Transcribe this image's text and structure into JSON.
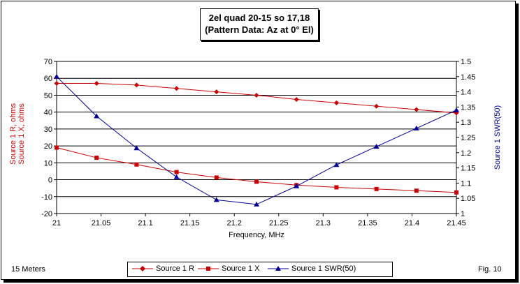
{
  "title": {
    "line1": "2el quad 20-15 so 17,18",
    "line2": "(Pattern Data: Az at 0° El)"
  },
  "footer": {
    "left": "15 Meters",
    "right": "Fig. 10"
  },
  "legend": {
    "items": [
      "Source 1 R",
      "Source 1 X",
      "Source 1 SWR(50)"
    ]
  },
  "colors": {
    "red": "#cc0000",
    "blue": "#000099",
    "grid": "#000000"
  },
  "chart_data": {
    "type": "line",
    "xlabel": "Frequency, MHz",
    "ylabel_left_line1": "Source 1 R, ohms",
    "ylabel_left_line2": "Source 1 X, ohms",
    "ylabel_right": "Source 1 SWR(50)",
    "xlim": [
      21,
      21.45
    ],
    "ylim_left": [
      -20,
      70
    ],
    "ylim_right": [
      1,
      1.5
    ],
    "x_ticks": [
      "21",
      "21.05",
      "21.1",
      "21.15",
      "21.2",
      "21.25",
      "21.3",
      "21.35",
      "21.4",
      "21.45"
    ],
    "y_left_ticks": [
      "-20",
      "-10",
      "0",
      "10",
      "20",
      "30",
      "40",
      "50",
      "60",
      "70"
    ],
    "y_right_ticks": [
      "1",
      "1.05",
      "1.1",
      "1.15",
      "1.2",
      "1.25",
      "1.3",
      "1.35",
      "1.4",
      "1.45",
      "1.5"
    ],
    "x": [
      21,
      21.045,
      21.09,
      21.135,
      21.18,
      21.225,
      21.27,
      21.315,
      21.36,
      21.405,
      21.45
    ],
    "series": [
      {
        "name": "Source 1 R",
        "axis": "left",
        "marker": "diamond",
        "color": "#cc0000",
        "values": [
          57,
          57,
          56,
          54,
          52,
          50,
          47.5,
          45.5,
          43.5,
          41.5,
          39.5
        ]
      },
      {
        "name": "Source 1 X",
        "axis": "left",
        "marker": "square",
        "color": "#cc0000",
        "values": [
          19,
          13,
          9,
          4.5,
          1.3,
          -1.2,
          -3.2,
          -4.5,
          -5.5,
          -6.5,
          -7.5
        ]
      },
      {
        "name": "Source 1 SWR(50)",
        "axis": "right",
        "marker": "triangle",
        "color": "#000099",
        "values": [
          1.45,
          1.32,
          1.215,
          1.12,
          1.045,
          1.03,
          1.09,
          1.16,
          1.22,
          1.28,
          1.34
        ]
      }
    ]
  }
}
